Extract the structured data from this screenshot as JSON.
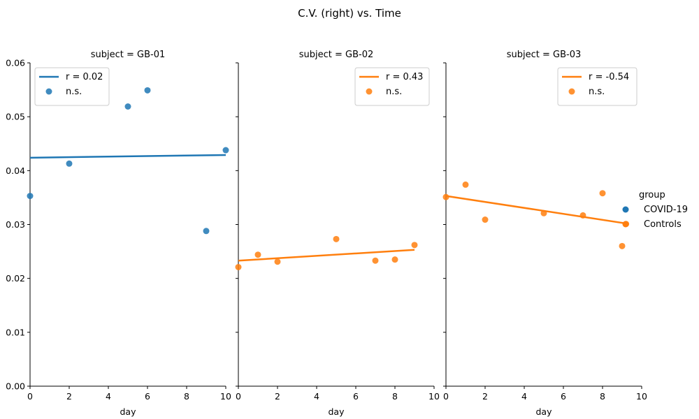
{
  "chart_data": {
    "type": "scatter",
    "title": "C.V. (right) vs. Time",
    "xlabel": "day",
    "xlim": [
      0,
      10
    ],
    "ylim": [
      0,
      0.06
    ],
    "xticks": [
      "0",
      "2",
      "4",
      "6",
      "8",
      "10"
    ],
    "yticks": [
      "0.00",
      "0.01",
      "0.02",
      "0.03",
      "0.04",
      "0.05",
      "0.06"
    ],
    "grid": false,
    "colors": {
      "COVID-19": "#1f77b4",
      "Controls": "#ff7f0e"
    },
    "group_legend": {
      "title": "group",
      "placement": "right",
      "entries": [
        "COVID-19",
        "Controls"
      ]
    },
    "panels": [
      {
        "title": "subject = GB-01",
        "group": "COVID-19",
        "legend": {
          "placement": "top-left",
          "line_label": "r = 0.02",
          "points_label": "n.s."
        },
        "points": [
          {
            "x": 0,
            "y": 0.0353
          },
          {
            "x": 2,
            "y": 0.0413
          },
          {
            "x": 5,
            "y": 0.0519
          },
          {
            "x": 6,
            "y": 0.0549
          },
          {
            "x": 9,
            "y": 0.0288
          },
          {
            "x": 10,
            "y": 0.0438
          }
        ],
        "fit": {
          "x": [
            0,
            10
          ],
          "y": [
            0.0424,
            0.0429
          ]
        }
      },
      {
        "title": "subject = GB-02",
        "group": "Controls",
        "legend": {
          "placement": "top-right",
          "line_label": "r = 0.43",
          "points_label": "n.s."
        },
        "points": [
          {
            "x": 0,
            "y": 0.0221
          },
          {
            "x": 1,
            "y": 0.0244
          },
          {
            "x": 2,
            "y": 0.0231
          },
          {
            "x": 5,
            "y": 0.0273
          },
          {
            "x": 7,
            "y": 0.0233
          },
          {
            "x": 8,
            "y": 0.0235
          },
          {
            "x": 9,
            "y": 0.0262
          }
        ],
        "fit": {
          "x": [
            0,
            9
          ],
          "y": [
            0.0233,
            0.0253
          ]
        }
      },
      {
        "title": "subject = GB-03",
        "group": "Controls",
        "legend": {
          "placement": "top-right",
          "line_label": "r = -0.54",
          "points_label": "n.s."
        },
        "points": [
          {
            "x": 0,
            "y": 0.0351
          },
          {
            "x": 1,
            "y": 0.0374
          },
          {
            "x": 2,
            "y": 0.0309
          },
          {
            "x": 5,
            "y": 0.0321
          },
          {
            "x": 7,
            "y": 0.0317
          },
          {
            "x": 8,
            "y": 0.0358
          },
          {
            "x": 9,
            "y": 0.026
          },
          {
            "x": 9.2,
            "y": 0.0301
          }
        ],
        "fit": {
          "x": [
            0,
            9.2
          ],
          "y": [
            0.0353,
            0.0302
          ]
        }
      }
    ]
  }
}
